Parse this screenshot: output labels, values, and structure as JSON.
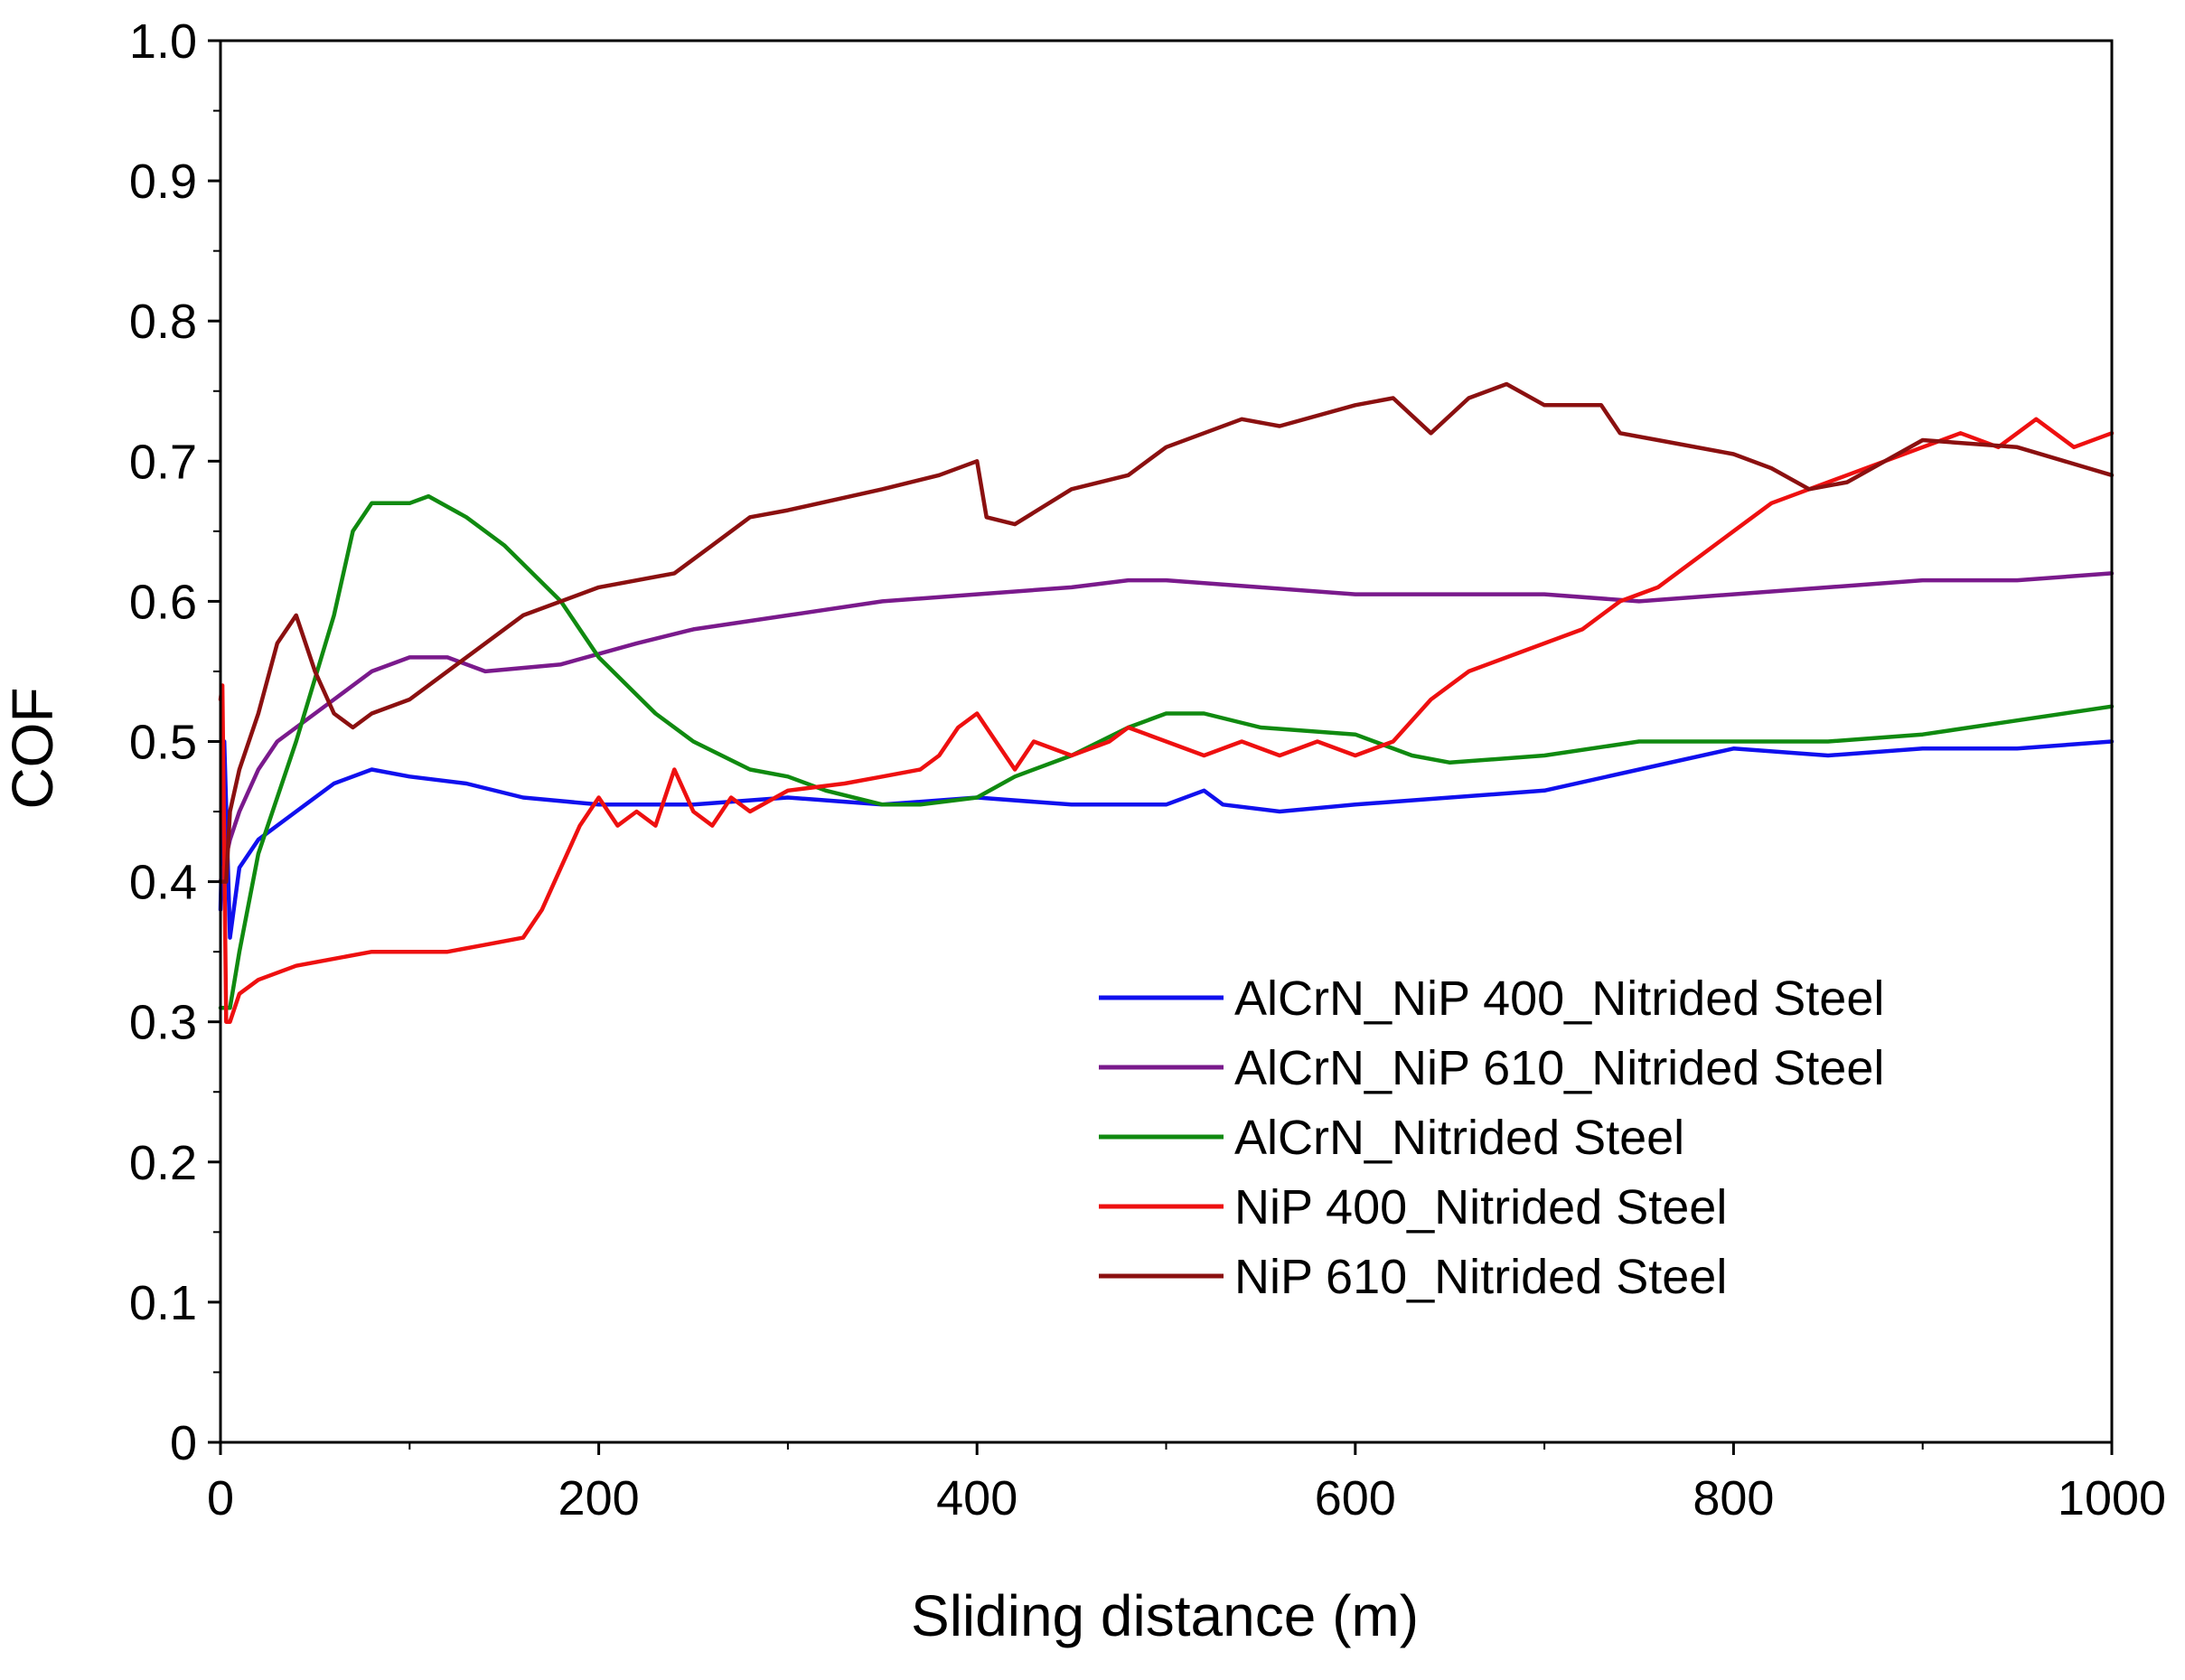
{
  "chart_data": {
    "type": "line",
    "title": "",
    "xlabel": "Sliding distance (m)",
    "ylabel": "COF",
    "xlim": [
      0,
      1000
    ],
    "ylim": [
      0,
      1.0
    ],
    "x_ticks": [
      0,
      200,
      400,
      600,
      800,
      1000
    ],
    "x_tick_labels": [
      "0",
      "200",
      "400",
      "600",
      "800",
      "1000"
    ],
    "y_ticks": [
      0,
      0.1,
      0.2,
      0.3,
      0.4,
      0.5,
      0.6,
      0.7,
      0.8,
      0.9,
      1.0
    ],
    "y_tick_labels": [
      "0",
      "0.1",
      "0.2",
      "0.3",
      "0.4",
      "0.5",
      "0.6",
      "0.7",
      "0.8",
      "0.9",
      "1.0"
    ],
    "grid": false,
    "legend_position": "lower-right",
    "series": [
      {
        "name": "AlCrN_NiP 400_Nitrided Steel",
        "color": "#1010ee",
        "x": [
          0,
          2,
          5,
          10,
          20,
          40,
          60,
          80,
          100,
          130,
          160,
          200,
          250,
          300,
          350,
          400,
          450,
          500,
          520,
          530,
          560,
          600,
          650,
          700,
          750,
          800,
          850,
          900,
          950,
          1000
        ],
        "y": [
          0.38,
          0.5,
          0.36,
          0.41,
          0.43,
          0.45,
          0.47,
          0.48,
          0.475,
          0.47,
          0.46,
          0.455,
          0.455,
          0.46,
          0.455,
          0.46,
          0.455,
          0.455,
          0.465,
          0.455,
          0.45,
          0.455,
          0.46,
          0.465,
          0.48,
          0.495,
          0.49,
          0.495,
          0.495,
          0.5
        ]
      },
      {
        "name": "AlCrN_NiP 610_Nitrided Steel",
        "color": "#7a1a8c",
        "x": [
          0,
          5,
          10,
          20,
          30,
          40,
          60,
          80,
          100,
          120,
          140,
          180,
          220,
          250,
          300,
          350,
          400,
          450,
          480,
          500,
          550,
          600,
          650,
          700,
          750,
          800,
          850,
          900,
          950,
          1000
        ],
        "y": [
          0.4,
          0.43,
          0.45,
          0.48,
          0.5,
          0.51,
          0.53,
          0.55,
          0.56,
          0.56,
          0.55,
          0.555,
          0.57,
          0.58,
          0.59,
          0.6,
          0.605,
          0.61,
          0.615,
          0.615,
          0.61,
          0.605,
          0.605,
          0.605,
          0.6,
          0.605,
          0.61,
          0.615,
          0.615,
          0.62
        ]
      },
      {
        "name": "AlCrN_Nitrided Steel",
        "color": "#108a10",
        "x": [
          0,
          5,
          10,
          20,
          40,
          60,
          70,
          80,
          100,
          110,
          130,
          150,
          180,
          200,
          230,
          250,
          280,
          300,
          320,
          350,
          370,
          400,
          420,
          450,
          480,
          500,
          520,
          550,
          600,
          630,
          650,
          700,
          750,
          800,
          850,
          900,
          950,
          1000
        ],
        "y": [
          0.31,
          0.31,
          0.35,
          0.42,
          0.5,
          0.59,
          0.65,
          0.67,
          0.67,
          0.675,
          0.66,
          0.64,
          0.6,
          0.56,
          0.52,
          0.5,
          0.48,
          0.475,
          0.465,
          0.455,
          0.455,
          0.46,
          0.475,
          0.49,
          0.51,
          0.52,
          0.52,
          0.51,
          0.505,
          0.49,
          0.485,
          0.49,
          0.5,
          0.5,
          0.5,
          0.505,
          0.515,
          0.525
        ]
      },
      {
        "name": "NiP 400_Nitrided Steel",
        "color": "#ee1010",
        "x": [
          0,
          1,
          3,
          5,
          10,
          20,
          40,
          60,
          80,
          100,
          120,
          140,
          160,
          170,
          180,
          190,
          200,
          210,
          220,
          230,
          240,
          250,
          260,
          270,
          280,
          300,
          330,
          350,
          370,
          380,
          390,
          400,
          410,
          420,
          430,
          450,
          470,
          480,
          500,
          520,
          540,
          560,
          580,
          600,
          620,
          640,
          660,
          680,
          700,
          720,
          740,
          760,
          780,
          800,
          820,
          840,
          860,
          880,
          900,
          920,
          940,
          960,
          970,
          980,
          1000
        ],
        "y": [
          0.53,
          0.54,
          0.3,
          0.3,
          0.32,
          0.33,
          0.34,
          0.345,
          0.35,
          0.35,
          0.35,
          0.355,
          0.36,
          0.38,
          0.41,
          0.44,
          0.46,
          0.44,
          0.45,
          0.44,
          0.48,
          0.45,
          0.44,
          0.46,
          0.45,
          0.465,
          0.47,
          0.475,
          0.48,
          0.49,
          0.51,
          0.52,
          0.5,
          0.48,
          0.5,
          0.49,
          0.5,
          0.51,
          0.5,
          0.49,
          0.5,
          0.49,
          0.5,
          0.49,
          0.5,
          0.53,
          0.55,
          0.56,
          0.57,
          0.58,
          0.6,
          0.61,
          0.63,
          0.65,
          0.67,
          0.68,
          0.69,
          0.7,
          0.71,
          0.72,
          0.71,
          0.73,
          0.72,
          0.71,
          0.72
        ]
      },
      {
        "name": "NiP 610_Nitrided Steel",
        "color": "#8b1010",
        "x": [
          0,
          3,
          5,
          10,
          20,
          30,
          40,
          50,
          60,
          70,
          80,
          100,
          130,
          160,
          200,
          240,
          260,
          280,
          300,
          350,
          380,
          400,
          405,
          420,
          450,
          480,
          500,
          540,
          560,
          600,
          620,
          640,
          660,
          680,
          700,
          730,
          740,
          760,
          800,
          820,
          840,
          860,
          900,
          950,
          1000
        ],
        "y": [
          0.4,
          0.4,
          0.45,
          0.48,
          0.52,
          0.57,
          0.59,
          0.55,
          0.52,
          0.51,
          0.52,
          0.53,
          0.56,
          0.59,
          0.61,
          0.62,
          0.64,
          0.66,
          0.665,
          0.68,
          0.69,
          0.7,
          0.66,
          0.655,
          0.68,
          0.69,
          0.71,
          0.73,
          0.725,
          0.74,
          0.745,
          0.72,
          0.745,
          0.755,
          0.74,
          0.74,
          0.72,
          0.715,
          0.705,
          0.695,
          0.68,
          0.685,
          0.715,
          0.71,
          0.69
        ]
      }
    ]
  }
}
